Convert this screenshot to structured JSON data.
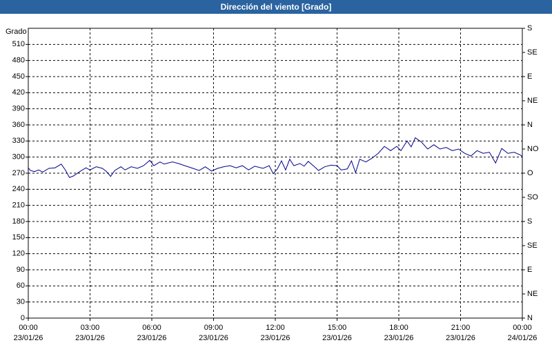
{
  "chart_data": {
    "type": "line",
    "title": "Dirección del viento [Grado]",
    "ylabel": "Grado",
    "x": [
      0,
      0.1,
      0.3,
      0.5,
      0.7,
      1.0,
      1.3,
      1.6,
      1.8,
      2.0,
      2.2,
      2.5,
      2.8,
      3.0,
      3.3,
      3.6,
      3.8,
      4.0,
      4.2,
      4.5,
      4.7,
      5.0,
      5.3,
      5.6,
      5.9,
      6.1,
      6.4,
      6.6,
      7.0,
      7.3,
      7.6,
      8.0,
      8.3,
      8.6,
      8.9,
      9.2,
      9.5,
      9.8,
      10.1,
      10.4,
      10.7,
      11.0,
      11.4,
      11.7,
      11.9,
      12.1,
      12.3,
      12.5,
      12.7,
      12.9,
      13.2,
      13.4,
      13.6,
      13.9,
      14.1,
      14.4,
      14.7,
      15.0,
      15.2,
      15.5,
      15.7,
      15.9,
      16.1,
      16.4,
      16.7,
      17.0,
      17.3,
      17.6,
      17.9,
      18.1,
      18.4,
      18.6,
      18.8,
      19.1,
      19.4,
      19.7,
      20.0,
      20.3,
      20.6,
      20.9,
      21.2,
      21.5,
      21.8,
      22.1,
      22.4,
      22.7,
      23.0,
      23.3,
      23.6,
      23.9,
      24.0
    ],
    "series": [
      {
        "name": "Dirección del viento",
        "color": "#00008b",
        "values": [
          280,
          275,
          273,
          276,
          272,
          279,
          280,
          287,
          276,
          262,
          265,
          273,
          280,
          276,
          282,
          279,
          273,
          264,
          275,
          282,
          276,
          282,
          279,
          284,
          294,
          284,
          291,
          287,
          291,
          288,
          284,
          279,
          275,
          282,
          274,
          279,
          282,
          284,
          280,
          284,
          276,
          283,
          279,
          284,
          269,
          278,
          293,
          276,
          296,
          284,
          288,
          283,
          292,
          282,
          275,
          282,
          285,
          284,
          276,
          278,
          293,
          271,
          296,
          291,
          298,
          307,
          320,
          312,
          320,
          312,
          330,
          319,
          336,
          328,
          315,
          323,
          315,
          318,
          312,
          315,
          307,
          302,
          312,
          307,
          309,
          289,
          316,
          307,
          309,
          304,
          301
        ]
      }
    ],
    "xlim": [
      0,
      24
    ],
    "xticks": [
      {
        "value": 0,
        "label": "00:00\n23/01/26"
      },
      {
        "value": 3,
        "label": "03:00\n23/01/26"
      },
      {
        "value": 6,
        "label": "06:00\n23/01/26"
      },
      {
        "value": 9,
        "label": "09:00\n23/01/26"
      },
      {
        "value": 12,
        "label": "12:00\n23/01/26"
      },
      {
        "value": 15,
        "label": "15:00\n23/01/26"
      },
      {
        "value": 18,
        "label": "18:00\n23/01/26"
      },
      {
        "value": 21,
        "label": "21:00\n23/01/26"
      },
      {
        "value": 24,
        "label": "00:00\n24/01/26"
      }
    ],
    "ylim": [
      0,
      540
    ],
    "yticks": [
      0,
      30,
      60,
      90,
      120,
      150,
      180,
      210,
      240,
      270,
      300,
      330,
      360,
      390,
      420,
      450,
      480,
      510
    ],
    "y2lim": [
      0,
      540
    ],
    "y2ticks": [
      {
        "value": 0,
        "label": "N"
      },
      {
        "value": 45,
        "label": "NE"
      },
      {
        "value": 90,
        "label": "E"
      },
      {
        "value": 135,
        "label": "SE"
      },
      {
        "value": 180,
        "label": "S"
      },
      {
        "value": 225,
        "label": "SO"
      },
      {
        "value": 270,
        "label": "O"
      },
      {
        "value": 315,
        "label": "NO"
      },
      {
        "value": 360,
        "label": "N"
      },
      {
        "value": 405,
        "label": "NE"
      },
      {
        "value": 450,
        "label": "E"
      },
      {
        "value": 495,
        "label": "SE"
      },
      {
        "value": 540,
        "label": "S"
      }
    ],
    "grid": true
  }
}
